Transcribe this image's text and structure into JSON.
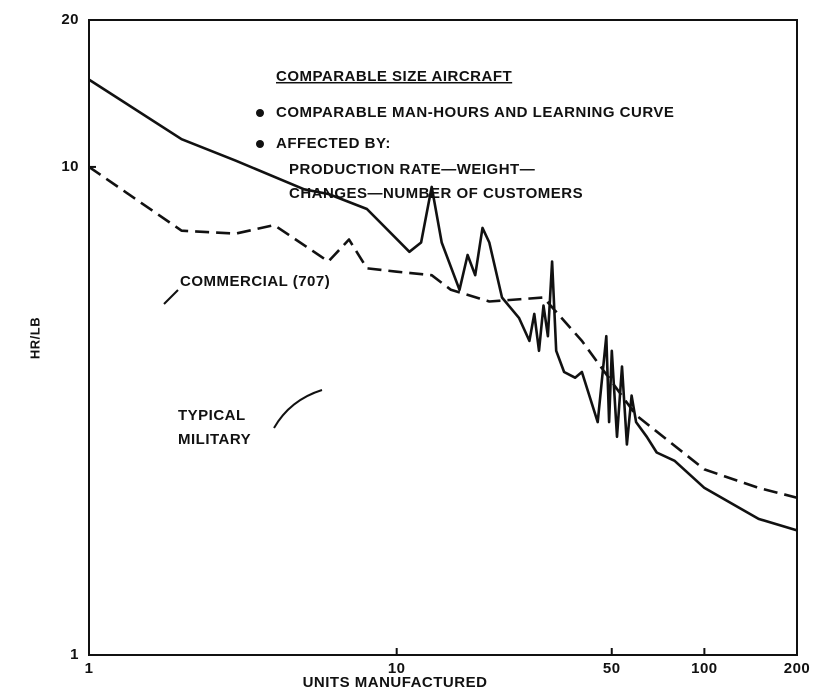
{
  "chart_data": {
    "type": "line",
    "x_label": "UNITS MANUFACTURED",
    "y_label": "HR/LB",
    "log_x": true,
    "log_y": true,
    "xlim": [
      1,
      200
    ],
    "ylim": [
      1,
      20
    ],
    "xticks": [
      1,
      10,
      50,
      100,
      200
    ],
    "yticks": [
      1,
      10,
      20
    ],
    "annotation": {
      "heading": "COMPARABLE SIZE AIRCRAFT",
      "bullets": [
        "COMPARABLE MAN-HOURS AND LEARNING CURVE",
        "AFFECTED BY:"
      ],
      "detail_lines": [
        "PRODUCTION RATE—WEIGHT—",
        "CHANGES—NUMBER OF CUSTOMERS"
      ]
    },
    "series": [
      {
        "name": "COMMERCIAL (707)",
        "color": "#111111",
        "style": "solid",
        "x": [
          1,
          2,
          3,
          5,
          6,
          8,
          11,
          12,
          13,
          14,
          16,
          17,
          18,
          19,
          20,
          22,
          25,
          27,
          28,
          29,
          30,
          31,
          32,
          33,
          35,
          38,
          40,
          45,
          48,
          49,
          50,
          52,
          54,
          56,
          58,
          60,
          65,
          70,
          80,
          100,
          150,
          200
        ],
        "values": [
          15.1,
          11.4,
          10.3,
          9.0,
          8.8,
          8.2,
          6.7,
          7.0,
          9.1,
          7.0,
          5.6,
          6.6,
          6.0,
          7.5,
          7.0,
          5.4,
          4.9,
          4.4,
          5.0,
          4.2,
          5.2,
          4.5,
          6.4,
          4.2,
          3.8,
          3.7,
          3.8,
          3.0,
          4.5,
          3.0,
          4.2,
          2.8,
          3.9,
          2.7,
          3.4,
          3.0,
          2.8,
          2.6,
          2.5,
          2.2,
          1.9,
          1.8
        ]
      },
      {
        "name": "TYPICAL MILITARY",
        "color": "#111111",
        "style": "dashed",
        "x": [
          1,
          2,
          3,
          4,
          6,
          7,
          8,
          10,
          13,
          15,
          20,
          30,
          40,
          60,
          100,
          150,
          200
        ],
        "values": [
          10,
          7.4,
          7.3,
          7.6,
          6.4,
          7.1,
          6.2,
          6.1,
          6.0,
          5.6,
          5.3,
          5.4,
          4.4,
          3.1,
          2.4,
          2.2,
          2.1
        ]
      }
    ]
  }
}
